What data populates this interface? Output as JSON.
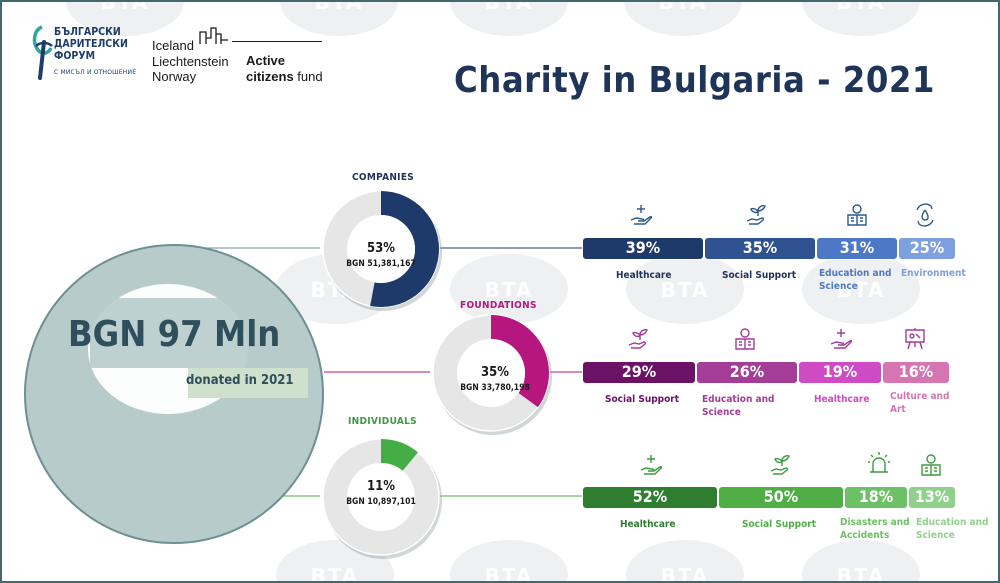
{
  "header": {
    "forum_name": "БЪЛГАРСКИ ДАРИТЕЛСКИ ФОРУМ",
    "forum_tagline": "С МИСЪЛ И ОТНОШЕНИЕ",
    "donor_countries": [
      "Iceland",
      "Liechtenstein",
      "Norway"
    ],
    "fund_name_line1": "Active",
    "fund_name_line2_bold": "citizens",
    "fund_name_line2_rest": " fund",
    "title": "Charity in Bulgaria - 2021"
  },
  "total": {
    "amount_label": "BGN 97 Mln",
    "sublabel": "donated in 2021"
  },
  "watermark_text": "BTA",
  "colors": {
    "companies": "#1e3a6b",
    "foundations": "#b5177e",
    "individuals": "#45ad45",
    "donut_gray": "#e6e6e6",
    "big_circle": "#b8cbcb"
  },
  "chart_data": [
    {
      "type": "pie",
      "heading": "COMPANIES",
      "share_percent": 53,
      "share_label": "53%",
      "amount_label": "BGN 51,381,167",
      "color": "#1e3a6b",
      "breakdown": {
        "type": "bar",
        "categories": [
          "Healthcare",
          "Social Support",
          "Education and Science",
          "Environment"
        ],
        "values": [
          39,
          35,
          31,
          25
        ],
        "value_labels": [
          "39%",
          "35%",
          "31%",
          "25%"
        ],
        "colors": [
          "#1e3a6b",
          "#2f5391",
          "#4d78c6",
          "#7fa0de"
        ],
        "icons": [
          "hand-plus-icon",
          "hand-sprout-icon",
          "book-person-icon",
          "recycle-drop-icon"
        ]
      }
    },
    {
      "type": "pie",
      "heading": "FOUNDATIONS",
      "share_percent": 35,
      "share_label": "35%",
      "amount_label": "BGN 33,780,198",
      "color": "#b5177e",
      "breakdown": {
        "type": "bar",
        "categories": [
          "Social Support",
          "Education and Science",
          "Healthcare",
          "Culture and Art"
        ],
        "values": [
          29,
          26,
          19,
          16
        ],
        "value_labels": [
          "29%",
          "26%",
          "19%",
          "16%"
        ],
        "colors": [
          "#6b1266",
          "#a33d98",
          "#cf4bc6",
          "#d576b2"
        ],
        "icons": [
          "hand-sprout-icon",
          "book-person-icon",
          "hand-plus-icon",
          "easel-icon"
        ]
      }
    },
    {
      "type": "pie",
      "heading": "INDIVIDUALS",
      "share_percent": 11,
      "share_label": "11%",
      "amount_label": "BGN 10,897,101",
      "color": "#45ad45",
      "breakdown": {
        "type": "bar",
        "categories": [
          "Healthcare",
          "Social Support",
          "Disasters and Accidents",
          "Education and Science"
        ],
        "values": [
          52,
          50,
          18,
          13
        ],
        "value_labels": [
          "52%",
          "50%",
          "18%",
          "13%"
        ],
        "colors": [
          "#2f7d2f",
          "#4fae46",
          "#6cc065",
          "#8fd18a"
        ],
        "icons": [
          "hand-plus-icon",
          "hand-sprout-icon",
          "alarm-light-icon",
          "book-person-icon"
        ]
      }
    }
  ]
}
